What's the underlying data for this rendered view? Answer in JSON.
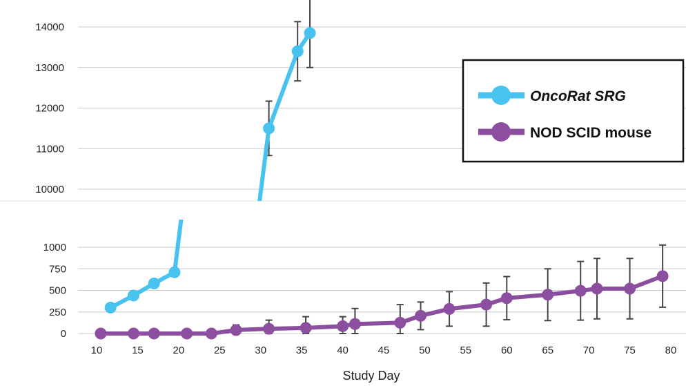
{
  "chart_data": {
    "type": "line",
    "title": "",
    "xlabel": "Study Day",
    "ylabel": "",
    "x_ticks": [
      10,
      15,
      20,
      25,
      30,
      35,
      40,
      45,
      50,
      55,
      60,
      65,
      70,
      75,
      80
    ],
    "xlim": [
      10,
      80
    ],
    "broken_y_axis": true,
    "y_upper_ticks": [
      10000,
      11000,
      12000,
      13000,
      14000
    ],
    "y_lower_ticks": [
      0,
      250,
      500,
      750,
      1000
    ],
    "grid": true,
    "legend_position": "right",
    "series": [
      {
        "name": "OncoRat SRG",
        "color": "#48c2ef",
        "x": [
          11.7,
          14.5,
          17,
          19.5,
          31,
          34.5,
          36
        ],
        "y": [
          300,
          440,
          580,
          710,
          11500,
          13400,
          13850
        ],
        "error": [
          0,
          0,
          0,
          0,
          670,
          730,
          850
        ]
      },
      {
        "name": "NOD SCID mouse",
        "color": "#8c4f9f",
        "x": [
          10.5,
          14.5,
          17,
          21,
          24,
          27,
          31,
          35.5,
          40,
          41.5,
          47,
          49.5,
          53,
          57.5,
          60,
          65,
          69,
          71,
          75,
          79
        ],
        "y": [
          0,
          0,
          0,
          0,
          0,
          40,
          55,
          65,
          85,
          110,
          125,
          205,
          285,
          335,
          410,
          450,
          495,
          520,
          520,
          665
        ],
        "error": [
          0,
          0,
          0,
          0,
          0,
          60,
          100,
          130,
          110,
          180,
          210,
          160,
          200,
          250,
          250,
          300,
          340,
          350,
          350,
          360
        ]
      }
    ]
  }
}
